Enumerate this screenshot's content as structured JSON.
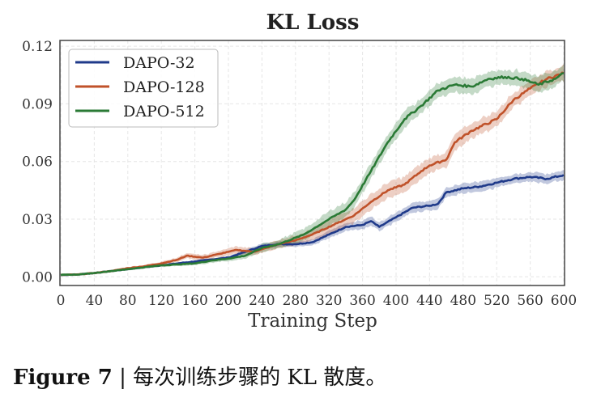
{
  "chart_data": {
    "type": "line",
    "title": "KL Loss",
    "xlabel": "Training Step",
    "ylabel": "",
    "xlim": [
      0,
      600
    ],
    "ylim": [
      -0.0045,
      0.123
    ],
    "xticks": [
      0,
      40,
      80,
      120,
      160,
      200,
      240,
      280,
      320,
      360,
      400,
      440,
      480,
      520,
      560,
      600
    ],
    "xtick_labels": [
      "0",
      "40",
      "80",
      "120",
      "160",
      "200",
      "240",
      "280",
      "320",
      "360",
      "400",
      "440",
      "480",
      "520",
      "560",
      "600"
    ],
    "yticks": [
      0.0,
      0.03,
      0.06,
      0.09,
      0.12
    ],
    "ytick_labels": [
      "0.00",
      "0.03",
      "0.06",
      "0.09",
      "0.12"
    ],
    "grid": true,
    "legend_position": "top-left",
    "series": [
      {
        "name": "DAPO-32",
        "color": "#1f3a8a",
        "band": 0.0025,
        "x": [
          0,
          20,
          40,
          60,
          80,
          100,
          120,
          140,
          160,
          180,
          200,
          220,
          240,
          260,
          280,
          300,
          320,
          340,
          360,
          370,
          380,
          400,
          420,
          440,
          450,
          460,
          480,
          500,
          520,
          540,
          560,
          580,
          600
        ],
        "y": [
          0.001,
          0.0012,
          0.002,
          0.003,
          0.004,
          0.005,
          0.006,
          0.007,
          0.008,
          0.009,
          0.01,
          0.013,
          0.016,
          0.017,
          0.017,
          0.018,
          0.022,
          0.026,
          0.027,
          0.029,
          0.026,
          0.031,
          0.036,
          0.037,
          0.038,
          0.044,
          0.046,
          0.047,
          0.049,
          0.051,
          0.052,
          0.051,
          0.053
        ]
      },
      {
        "name": "DAPO-128",
        "color": "#c0522a",
        "band": 0.004,
        "x": [
          0,
          20,
          40,
          60,
          80,
          100,
          120,
          140,
          150,
          170,
          190,
          200,
          210,
          230,
          260,
          280,
          300,
          330,
          350,
          370,
          390,
          410,
          430,
          440,
          460,
          470,
          490,
          520,
          540,
          560,
          580,
          600
        ],
        "y": [
          0.001,
          0.0012,
          0.002,
          0.003,
          0.0045,
          0.0055,
          0.007,
          0.009,
          0.011,
          0.01,
          0.012,
          0.013,
          0.014,
          0.013,
          0.017,
          0.019,
          0.022,
          0.028,
          0.032,
          0.039,
          0.045,
          0.048,
          0.055,
          0.058,
          0.061,
          0.07,
          0.076,
          0.082,
          0.092,
          0.098,
          0.103,
          0.106
        ]
      },
      {
        "name": "DAPO-512",
        "color": "#2a7a35",
        "band": 0.004,
        "x": [
          0,
          20,
          40,
          60,
          80,
          100,
          120,
          140,
          160,
          180,
          200,
          220,
          240,
          260,
          290,
          320,
          340,
          350,
          370,
          390,
          410,
          430,
          450,
          470,
          490,
          510,
          530,
          550,
          570,
          590,
          600
        ],
        "y": [
          0.001,
          0.0012,
          0.002,
          0.003,
          0.004,
          0.005,
          0.006,
          0.0065,
          0.007,
          0.0085,
          0.0095,
          0.011,
          0.015,
          0.017,
          0.022,
          0.03,
          0.035,
          0.04,
          0.055,
          0.07,
          0.082,
          0.089,
          0.097,
          0.1,
          0.099,
          0.103,
          0.104,
          0.103,
          0.1,
          0.103,
          0.106
        ]
      }
    ]
  },
  "caption": {
    "label": "Figure 7",
    "separator": "|",
    "text": "每次训练步骤的 KL 散度。"
  }
}
